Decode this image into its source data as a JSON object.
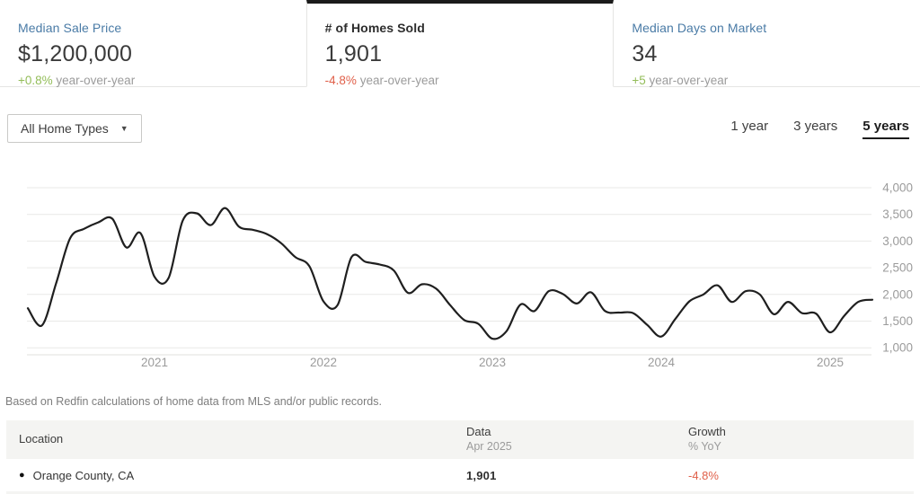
{
  "colors": {
    "accent_blue": "#4a7ba6",
    "positive_green": "#93bd59",
    "negative_red": "#e0604a",
    "line_black": "#1f1f1f",
    "grid_gray": "#e9e9e7",
    "baseline_gray": "#e0e0de",
    "text_dark": "#3b3b3b",
    "text_gray": "#9b9b9b",
    "header_bg": "#f4f4f2"
  },
  "tabs": [
    {
      "title": "Median Sale Price",
      "value": "$1,200,000",
      "yoy_delta": "+0.8%",
      "yoy_suffix": " year-over-year",
      "trend": "up",
      "active": false
    },
    {
      "title": "# of Homes Sold",
      "value": "1,901",
      "yoy_delta": "-4.8%",
      "yoy_suffix": " year-over-year",
      "trend": "down",
      "active": true
    },
    {
      "title": "Median Days on Market",
      "value": "34",
      "yoy_delta": "+5",
      "yoy_suffix": " year-over-year",
      "trend": "up",
      "active": false
    }
  ],
  "filters": {
    "home_type": {
      "selected": "All Home Types"
    },
    "ranges": [
      {
        "label": "1 year",
        "active": false
      },
      {
        "label": "3 years",
        "active": false
      },
      {
        "label": "5 years",
        "active": true
      }
    ]
  },
  "chart_data": {
    "type": "line",
    "title": "# of Homes Sold, monthly, 5 years",
    "x_unit": "month",
    "start_month": "2020-04",
    "end_month": "2025-04",
    "ylim": [
      1000,
      4000
    ],
    "grid": "horizontal",
    "legend_position": "none",
    "y_axis_side": "right",
    "y_ticks": [
      4000,
      3500,
      3000,
      2500,
      2000,
      1500,
      1000
    ],
    "x_tick_labels": [
      {
        "label": "2021",
        "month_index": 9
      },
      {
        "label": "2022",
        "month_index": 21
      },
      {
        "label": "2023",
        "month_index": 33
      },
      {
        "label": "2024",
        "month_index": 45
      },
      {
        "label": "2025",
        "month_index": 57
      }
    ],
    "series": [
      {
        "name": "Orange County, CA",
        "values": [
          1740,
          1420,
          2200,
          3050,
          3230,
          3350,
          3420,
          2880,
          3150,
          2330,
          2310,
          3380,
          3520,
          3300,
          3620,
          3270,
          3210,
          3130,
          2960,
          2700,
          2530,
          1870,
          1800,
          2700,
          2610,
          2560,
          2450,
          2030,
          2190,
          2110,
          1800,
          1520,
          1450,
          1170,
          1310,
          1810,
          1690,
          2060,
          2010,
          1830,
          2040,
          1690,
          1660,
          1650,
          1430,
          1210,
          1540,
          1870,
          2000,
          2170,
          1860,
          2060,
          2000,
          1630,
          1860,
          1650,
          1640,
          1290,
          1600,
          1860,
          1901
        ]
      }
    ]
  },
  "disclaimer": "Based on Redfin calculations of home data from MLS and/or public records.",
  "table": {
    "headers": {
      "location": "Location",
      "data_main": "Data",
      "data_sub": "Apr 2025",
      "growth_main": "Growth",
      "growth_sub": "% YoY"
    },
    "rows": [
      {
        "location": "Orange County, CA",
        "dot": "●",
        "data": "1,901",
        "growth": "-4.8%"
      }
    ]
  }
}
